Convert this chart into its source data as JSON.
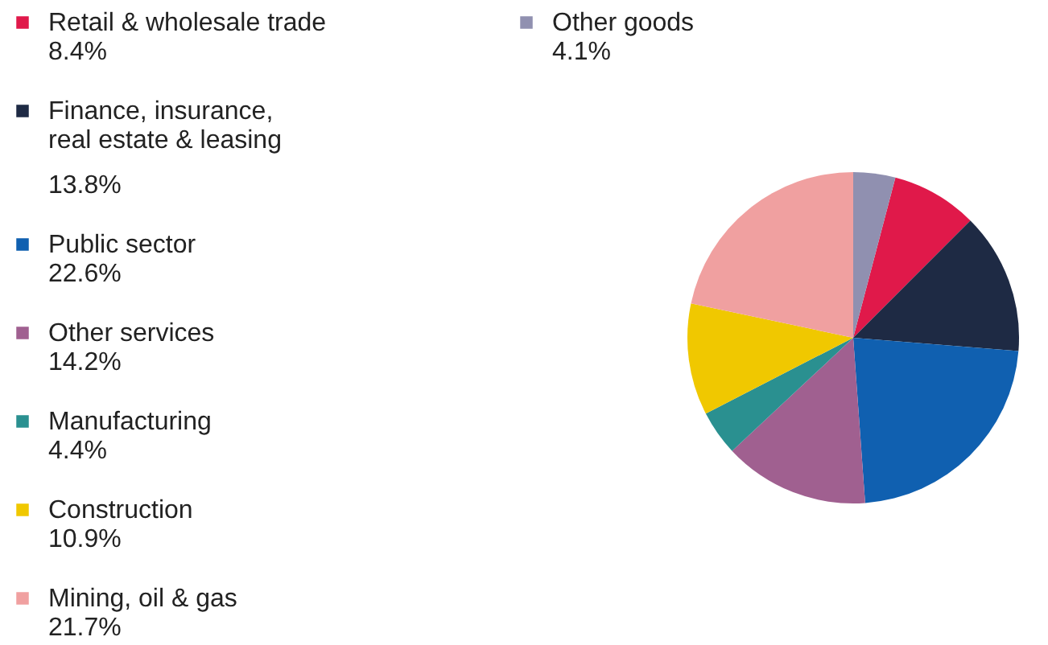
{
  "chart_data": {
    "type": "pie",
    "categories": [
      "Retail & wholesale trade",
      "Finance, insurance,\nreal estate & leasing",
      "Public sector",
      "Other services",
      "Manufacturing",
      "Construction",
      "Mining, oil & gas",
      "Other goods"
    ],
    "values": [
      8.4,
      13.8,
      22.6,
      14.2,
      4.4,
      10.9,
      21.7,
      4.1
    ],
    "value_labels": [
      "8.4%",
      "13.8%",
      "22.6%",
      "14.2%",
      "4.4%",
      "10.9%",
      "21.7%",
      "4.1%"
    ],
    "colors": [
      "#e0194a",
      "#1e2a44",
      "#1060b0",
      "#a06090",
      "#2a9090",
      "#f0c800",
      "#f0a0a0",
      "#9090b0"
    ],
    "legend": "left"
  }
}
